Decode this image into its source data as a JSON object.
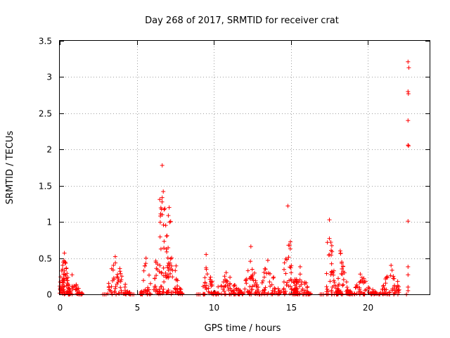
{
  "chart_data": {
    "type": "scatter",
    "title": "Day 268 of 2017, SRMTID for receiver crat",
    "xlabel": "GPS time / hours",
    "ylabel": "SRMTID / TECUs",
    "xlim": [
      0,
      24
    ],
    "ylim": [
      0,
      3.5
    ],
    "x_ticks": [
      0,
      5,
      10,
      15,
      20
    ],
    "x_tick_labels": [
      "0",
      "5",
      "10",
      "15",
      "20"
    ],
    "y_ticks": [
      0,
      0.5,
      1,
      1.5,
      2,
      2.5,
      3,
      3.5
    ],
    "y_tick_labels": [
      "0",
      "0.5",
      "1",
      "1.5",
      "2",
      "2.5",
      "3",
      "3.5"
    ],
    "grid": true,
    "marker": "+",
    "color": "#ff0000",
    "series": [
      {
        "name": "SRMTID",
        "clusters": [
          {
            "x_range": [
              0.0,
              0.7
            ],
            "peak_x": 0.3,
            "peak": 0.57,
            "n": 70
          },
          {
            "x_range": [
              0.5,
              1.5
            ],
            "peak_x": 0.8,
            "peak": 0.27,
            "n": 35
          },
          {
            "x_range": [
              3.1,
              4.6
            ],
            "peak_x": 3.6,
            "peak": 0.52,
            "n": 60
          },
          {
            "x_range": [
              5.2,
              5.9
            ],
            "peak_x": 5.6,
            "peak": 0.5,
            "n": 30
          },
          {
            "x_range": [
              6.1,
              7.1
            ],
            "peak_x": 6.65,
            "peak": 1.78,
            "n": 70
          },
          {
            "x_range": [
              6.9,
              8.0
            ],
            "peak_x": 7.1,
            "peak": 1.2,
            "n": 50
          },
          {
            "x_range": [
              9.3,
              10.3
            ],
            "peak_x": 9.5,
            "peak": 0.55,
            "n": 40
          },
          {
            "x_range": [
              10.2,
              12.0
            ],
            "peak_x": 10.8,
            "peak": 0.3,
            "n": 60
          },
          {
            "x_range": [
              12.0,
              12.8
            ],
            "peak_x": 12.4,
            "peak": 0.66,
            "n": 40
          },
          {
            "x_range": [
              12.8,
              14.3
            ],
            "peak_x": 13.5,
            "peak": 0.47,
            "n": 50
          },
          {
            "x_range": [
              14.5,
              15.4
            ],
            "peak_x": 14.8,
            "peak": 1.22,
            "n": 55
          },
          {
            "x_range": [
              15.2,
              16.3
            ],
            "peak_x": 15.6,
            "peak": 0.38,
            "n": 45
          },
          {
            "x_range": [
              17.3,
              18.1
            ],
            "peak_x": 17.5,
            "peak": 1.03,
            "n": 55
          },
          {
            "x_range": [
              18.0,
              19.0
            ],
            "peak_x": 18.2,
            "peak": 0.6,
            "n": 45
          },
          {
            "x_range": [
              19.0,
              20.8
            ],
            "peak_x": 19.5,
            "peak": 0.28,
            "n": 55
          },
          {
            "x_range": [
              20.8,
              22.1
            ],
            "peak_x": 21.5,
            "peak": 0.4,
            "n": 55
          }
        ],
        "baseline_points": [
          {
            "x": 2.8,
            "y": 0.0
          },
          {
            "x": 2.9,
            "y": 0.0
          },
          {
            "x": 3.0,
            "y": 0.0
          },
          {
            "x": 4.7,
            "y": 0.0
          },
          {
            "x": 4.8,
            "y": 0.0
          },
          {
            "x": 8.9,
            "y": 0.0
          },
          {
            "x": 9.0,
            "y": 0.0
          },
          {
            "x": 9.1,
            "y": 0.0
          },
          {
            "x": 16.9,
            "y": 0.0
          },
          {
            "x": 17.0,
            "y": 0.0
          },
          {
            "x": 17.1,
            "y": 0.0
          },
          {
            "x": 22.5,
            "y": 0.0
          }
        ],
        "outliers": [
          {
            "x": 22.6,
            "y": 3.21
          },
          {
            "x": 22.65,
            "y": 3.13
          },
          {
            "x": 22.6,
            "y": 2.8
          },
          {
            "x": 22.62,
            "y": 2.77
          },
          {
            "x": 22.6,
            "y": 2.4
          },
          {
            "x": 22.6,
            "y": 2.06
          },
          {
            "x": 22.63,
            "y": 2.05
          },
          {
            "x": 22.6,
            "y": 1.01
          },
          {
            "x": 22.6,
            "y": 0.38
          },
          {
            "x": 22.6,
            "y": 0.27
          },
          {
            "x": 22.6,
            "y": 0.1
          },
          {
            "x": 22.6,
            "y": 0.05
          }
        ]
      }
    ]
  }
}
